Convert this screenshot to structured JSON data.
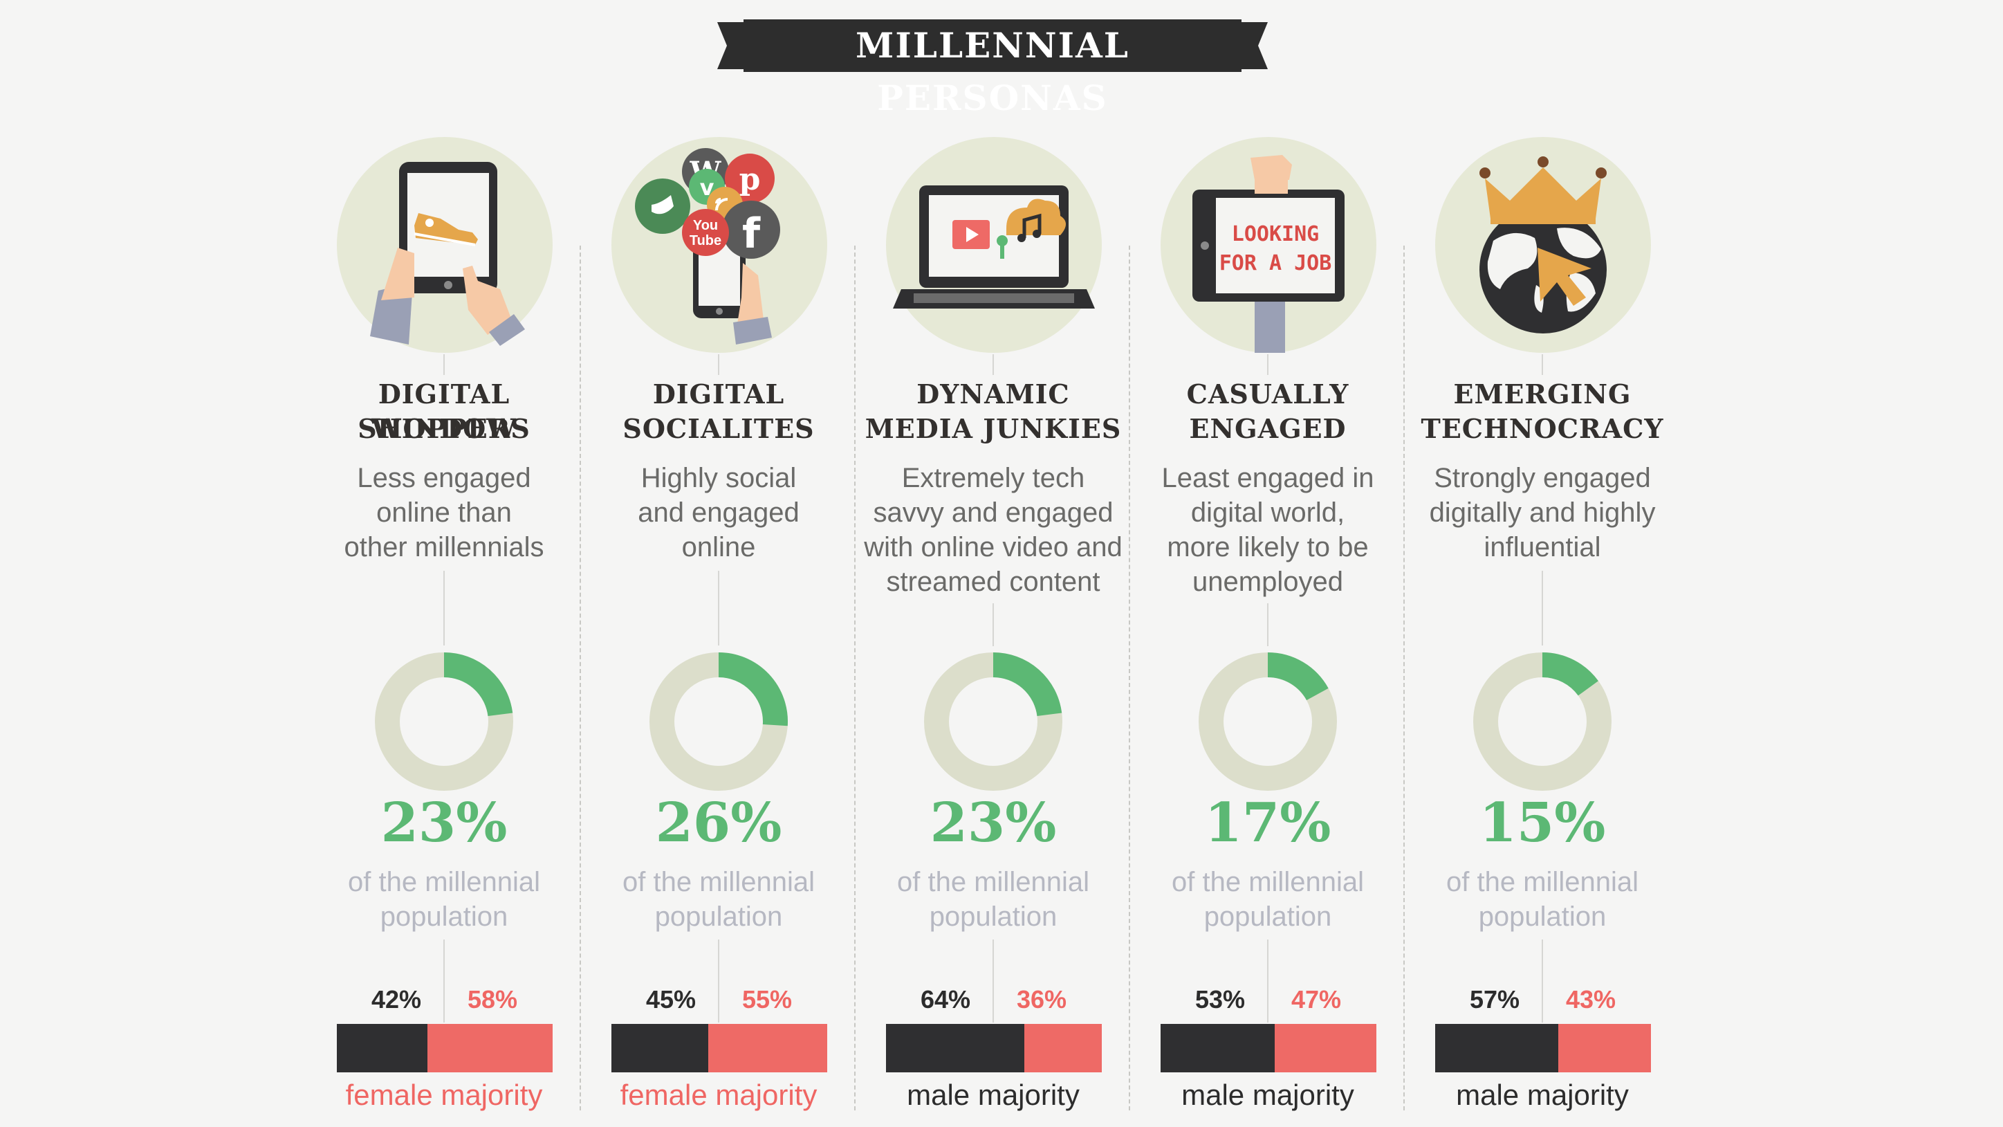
{
  "title": "MILLENNIAL PERSONAS",
  "colors": {
    "accent_green": "#5cb874",
    "ring_track": "#dcdecb",
    "male_bar": "#2f2f31",
    "female_bar": "#ee6a66",
    "icon_circle": "#e6e9d6"
  },
  "chart_data": [
    {
      "type": "pie",
      "title": "DIGITAL WINDOW SHOPPERS",
      "description": "Less engaged online than other millennials",
      "share_of_population": 23,
      "share_label": "23%",
      "gender_split": {
        "male": 42,
        "female": 58
      },
      "majority": "female majority",
      "icon": "tablet-shopping-icon"
    },
    {
      "type": "pie",
      "title": "DIGITAL SOCIALITES",
      "description": "Highly social and engaged online",
      "share_of_population": 26,
      "share_label": "26%",
      "gender_split": {
        "male": 45,
        "female": 55
      },
      "majority": "female majority",
      "icon": "smartphone-social-icon"
    },
    {
      "type": "pie",
      "title": "DYNAMIC MEDIA JUNKIES",
      "description": "Extremely tech savvy and engaged with online video and streamed content",
      "share_of_population": 23,
      "share_label": "23%",
      "gender_split": {
        "male": 64,
        "female": 36
      },
      "majority": "male majority",
      "icon": "laptop-media-icon"
    },
    {
      "type": "pie",
      "title": "CASUALLY ENGAGED",
      "description": "Least engaged in digital world, more likely to be unemployed",
      "share_of_population": 17,
      "share_label": "17%",
      "gender_split": {
        "male": 53,
        "female": 47
      },
      "majority": "male majority",
      "icon": "job-sign-icon"
    },
    {
      "type": "pie",
      "title": "EMERGING TECHNOCRACY",
      "description": "Strongly engaged digitally and highly influential",
      "share_of_population": 15,
      "share_label": "15%",
      "gender_split": {
        "male": 57,
        "female": 43
      },
      "majority": "male majority",
      "icon": "crowned-globe-icon"
    }
  ],
  "columns": [
    {
      "title_lines": [
        "DIGITAL WINDOW",
        "SHOPPERS"
      ],
      "desc_lines": [
        "Less engaged",
        "online than",
        "other millennials"
      ],
      "pct": "23%",
      "pop_lines": [
        "of the millennial",
        "population"
      ],
      "male_pct": "42%",
      "female_pct": "58%",
      "majority": "female majority"
    },
    {
      "title_lines": [
        "DIGITAL",
        "SOCIALITES"
      ],
      "desc_lines": [
        "Highly social",
        "and engaged",
        "online"
      ],
      "pct": "26%",
      "pop_lines": [
        "of the millennial",
        "population"
      ],
      "male_pct": "45%",
      "female_pct": "55%",
      "majority": "female majority",
      "icon_text": {
        "youtube_1": "You",
        "youtube_2": "Tube",
        "facebook": "f"
      }
    },
    {
      "title_lines": [
        "DYNAMIC",
        "MEDIA JUNKIES"
      ],
      "desc_lines": [
        "Extremely tech",
        "savvy and engaged",
        "with online video and",
        "streamed content"
      ],
      "pct": "23%",
      "pop_lines": [
        "of the millennial",
        "population"
      ],
      "male_pct": "64%",
      "female_pct": "36%",
      "majority": "male majority"
    },
    {
      "title_lines": [
        "CASUALLY",
        "ENGAGED"
      ],
      "desc_lines": [
        "Least engaged in",
        "digital world,",
        "more likely to be",
        "unemployed"
      ],
      "pct": "17%",
      "pop_lines": [
        "of the millennial",
        "population"
      ],
      "male_pct": "53%",
      "female_pct": "47%",
      "majority": "male majority",
      "icon_text": {
        "sign_1": "LOOKING",
        "sign_2": "FOR A JOB"
      }
    },
    {
      "title_lines": [
        "EMERGING",
        "TECHNOCRACY"
      ],
      "desc_lines": [
        "Strongly engaged",
        "digitally and highly",
        "influential"
      ],
      "pct": "15%",
      "pop_lines": [
        "of the millennial",
        "population"
      ],
      "male_pct": "57%",
      "female_pct": "43%",
      "majority": "male majority"
    }
  ]
}
